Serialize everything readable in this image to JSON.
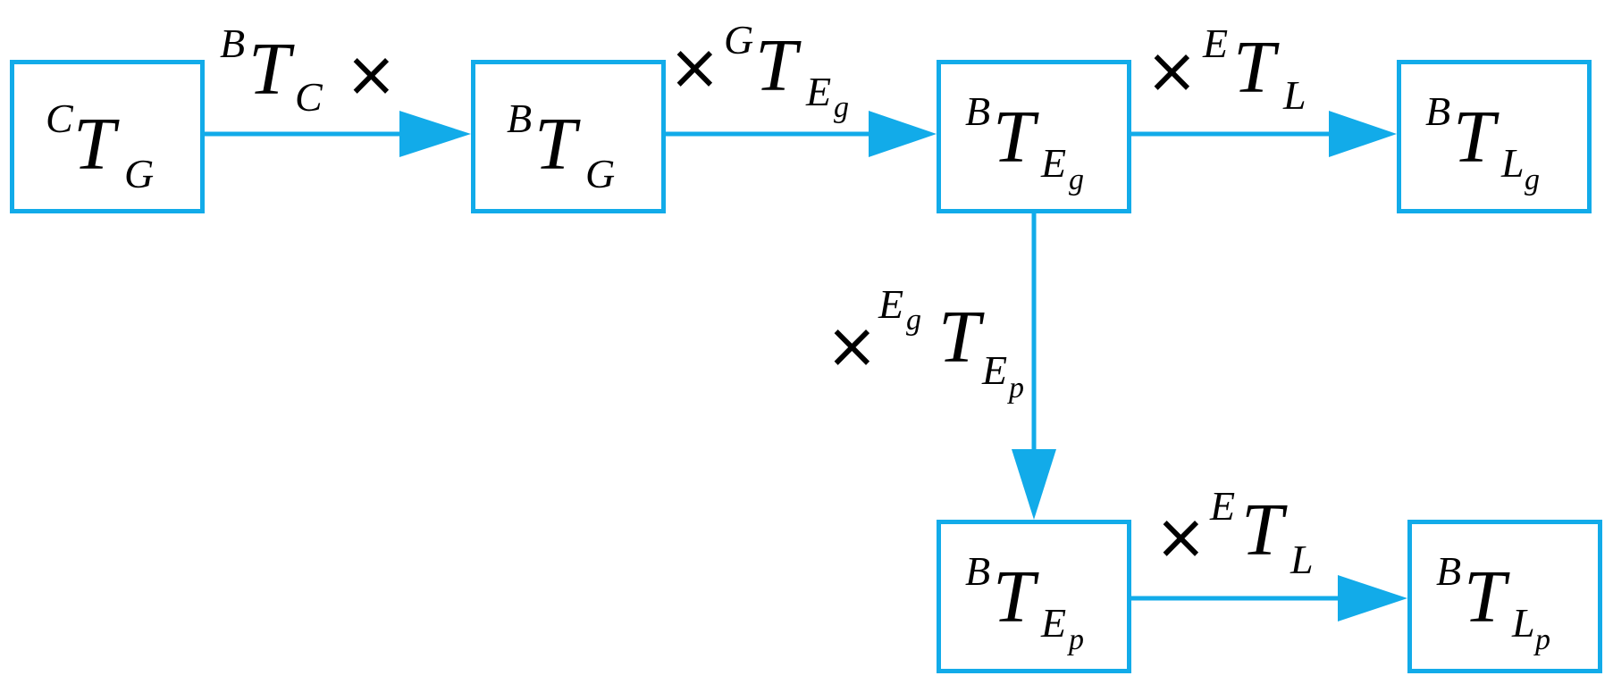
{
  "colors": {
    "accent": "#12ABE9",
    "text": "#000000",
    "background": "#ffffff"
  },
  "boxes": {
    "ctg": {
      "pre": "C",
      "main": "T",
      "sub": "G",
      "subsub": ""
    },
    "btg": {
      "pre": "B",
      "main": "T",
      "sub": "G",
      "subsub": ""
    },
    "bteg": {
      "pre": "B",
      "main": "T",
      "sub": "E",
      "subsub": "g"
    },
    "btlg": {
      "pre": "B",
      "main": "T",
      "sub": "L",
      "subsub": "g"
    },
    "btep": {
      "pre": "B",
      "main": "T",
      "sub": "E",
      "subsub": "p"
    },
    "btlp": {
      "pre": "B",
      "main": "T",
      "sub": "L",
      "subsub": "p"
    }
  },
  "edges": {
    "e1": {
      "pre": "B",
      "main": "T",
      "sub": "C",
      "subsub": "",
      "times": "×"
    },
    "e2": {
      "pre": "G",
      "main": "T",
      "sub": "E",
      "subsub": "g",
      "times": "×"
    },
    "e3": {
      "pre": "E",
      "main": "T",
      "sub": "L",
      "subsub": "",
      "times": "×"
    },
    "e4": {
      "pre": "E",
      "prepre": "g",
      "main": "T",
      "sub": "E",
      "subsub": "p",
      "times": "×"
    },
    "e5": {
      "pre": "E",
      "main": "T",
      "sub": "L",
      "subsub": "",
      "times": "×"
    }
  }
}
